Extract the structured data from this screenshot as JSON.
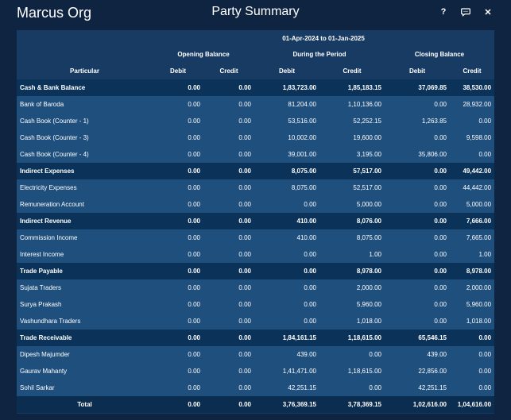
{
  "header": {
    "org": "Marcus Org",
    "title": "Party Summary",
    "help_label": "?",
    "close_label": "✕"
  },
  "table": {
    "period": "01-Apr-2024 to 01-Jan-2025",
    "groups": [
      "Opening Balance",
      "During the Period",
      "Closing Balance"
    ],
    "columns": [
      "Particular",
      "Debit",
      "Credit",
      "Debit",
      "Credit",
      "Debit",
      "Credit"
    ],
    "rows": [
      {
        "type": "group",
        "cells": [
          "Cash & Bank Balance",
          "0.00",
          "0.00",
          "1,83,723.00",
          "1,85,183.15",
          "37,069.85",
          "38,530.00"
        ]
      },
      {
        "type": "item",
        "cells": [
          "Bank of Baroda",
          "0.00",
          "0.00",
          "81,204.00",
          "1,10,136.00",
          "0.00",
          "28,932.00"
        ]
      },
      {
        "type": "item",
        "cells": [
          "Cash Book (Counter - 1)",
          "0.00",
          "0.00",
          "53,516.00",
          "52,252.15",
          "1,263.85",
          "0.00"
        ]
      },
      {
        "type": "item",
        "cells": [
          "Cash Book (Counter - 3)",
          "0.00",
          "0.00",
          "10,002.00",
          "19,600.00",
          "0.00",
          "9,598.00"
        ]
      },
      {
        "type": "item",
        "cells": [
          "Cash Book (Counter - 4)",
          "0.00",
          "0.00",
          "39,001.00",
          "3,195.00",
          "35,806.00",
          "0.00"
        ]
      },
      {
        "type": "group",
        "cells": [
          "Indirect Expenses",
          "0.00",
          "0.00",
          "8,075.00",
          "57,517.00",
          "0.00",
          "49,442.00"
        ]
      },
      {
        "type": "item",
        "cells": [
          "Electricity Expenses",
          "0.00",
          "0.00",
          "8,075.00",
          "52,517.00",
          "0.00",
          "44,442.00"
        ]
      },
      {
        "type": "item",
        "cells": [
          "Remuneration Account",
          "0.00",
          "0.00",
          "0.00",
          "5,000.00",
          "0.00",
          "5,000.00"
        ]
      },
      {
        "type": "group",
        "cells": [
          "Indirect Revenue",
          "0.00",
          "0.00",
          "410.00",
          "8,076.00",
          "0.00",
          "7,666.00"
        ]
      },
      {
        "type": "item",
        "cells": [
          "Commission Income",
          "0.00",
          "0.00",
          "410.00",
          "8,075.00",
          "0.00",
          "7,665.00"
        ]
      },
      {
        "type": "item",
        "cells": [
          "Interest Income",
          "0.00",
          "0.00",
          "0.00",
          "1.00",
          "0.00",
          "1.00"
        ]
      },
      {
        "type": "group",
        "cells": [
          "Trade Payable",
          "0.00",
          "0.00",
          "0.00",
          "8,978.00",
          "0.00",
          "8,978.00"
        ]
      },
      {
        "type": "item",
        "cells": [
          "Sujata Traders",
          "0.00",
          "0.00",
          "0.00",
          "2,000.00",
          "0.00",
          "2,000.00"
        ]
      },
      {
        "type": "item",
        "cells": [
          "Surya Prakash",
          "0.00",
          "0.00",
          "0.00",
          "5,960.00",
          "0.00",
          "5,960.00"
        ]
      },
      {
        "type": "item",
        "cells": [
          "Vashundhara Traders",
          "0.00",
          "0.00",
          "0.00",
          "1,018.00",
          "0.00",
          "1,018.00"
        ]
      },
      {
        "type": "group",
        "cells": [
          "Trade Receivable",
          "0.00",
          "0.00",
          "1,84,161.15",
          "1,18,615.00",
          "65,546.15",
          "0.00"
        ]
      },
      {
        "type": "item",
        "cells": [
          "Dipesh Majumder",
          "0.00",
          "0.00",
          "439.00",
          "0.00",
          "439.00",
          "0.00"
        ]
      },
      {
        "type": "item",
        "cells": [
          "Gaurav Mahanty",
          "0.00",
          "0.00",
          "1,41,471.00",
          "1,18,615.00",
          "22,856.00",
          "0.00"
        ]
      },
      {
        "type": "item",
        "cells": [
          "Sohil Sarkar",
          "0.00",
          "0.00",
          "42,251.15",
          "0.00",
          "42,251.15",
          "0.00"
        ]
      },
      {
        "type": "total",
        "cells": [
          "Total",
          "0.00",
          "0.00",
          "3,76,369.15",
          "3,78,369.15",
          "1,02,616.00",
          "1,04,616.00"
        ]
      }
    ]
  }
}
